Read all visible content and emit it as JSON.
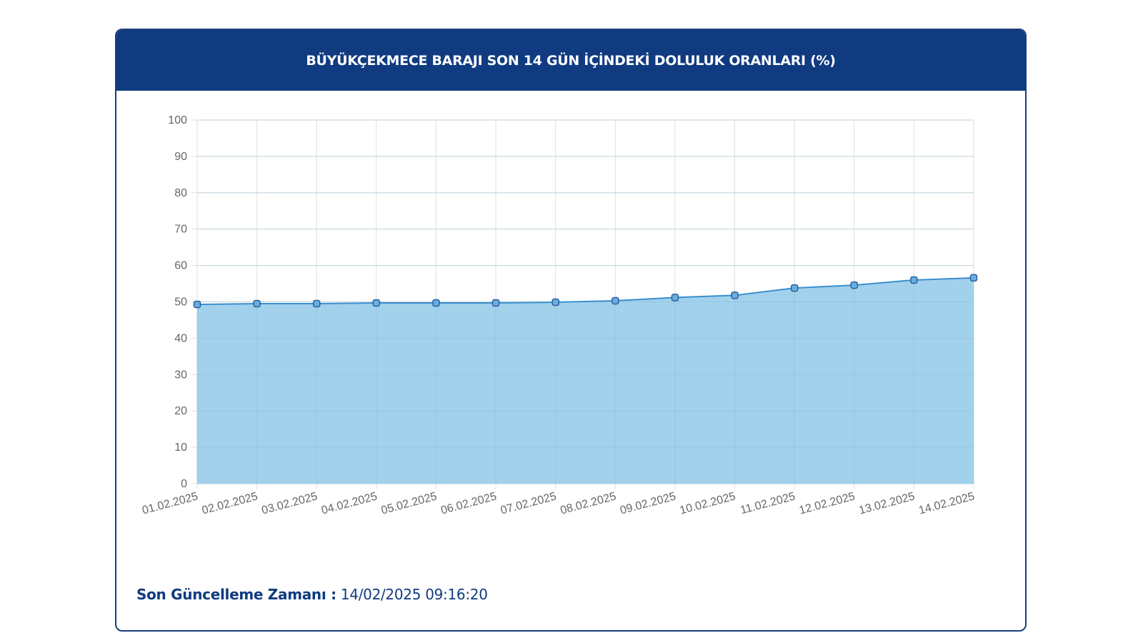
{
  "header": {
    "title": "BÜYÜKÇEKMECE BARAJI SON 14 GÜN İÇİNDEKİ DOLULUK ORANLARI (%)"
  },
  "footer": {
    "label": "Son Güncelleme Zamanı :",
    "value": "14/02/2025 09:16:20"
  },
  "colors": {
    "header_bg": "#103b80",
    "fill": "#9dcfeb",
    "line": "#3a8fce",
    "point_fill": "#6aaee0",
    "point_stroke": "#2a5f9e",
    "grid": "#e0e0e0"
  },
  "chart_data": {
    "type": "area",
    "categories": [
      "01.02.2025",
      "02.02.2025",
      "03.02.2025",
      "04.02.2025",
      "05.02.2025",
      "06.02.2025",
      "07.02.2025",
      "08.02.2025",
      "09.02.2025",
      "10.02.2025",
      "11.02.2025",
      "12.02.2025",
      "13.02.2025",
      "14.02.2025"
    ],
    "values": [
      49.3,
      49.5,
      49.5,
      49.7,
      49.7,
      49.7,
      49.9,
      50.3,
      51.2,
      51.8,
      53.8,
      54.6,
      56.0,
      56.6
    ],
    "ylim": [
      0,
      100
    ],
    "yticks": [
      0,
      10,
      20,
      30,
      40,
      50,
      60,
      70,
      80,
      90,
      100
    ],
    "grid": true,
    "legend": "none"
  }
}
